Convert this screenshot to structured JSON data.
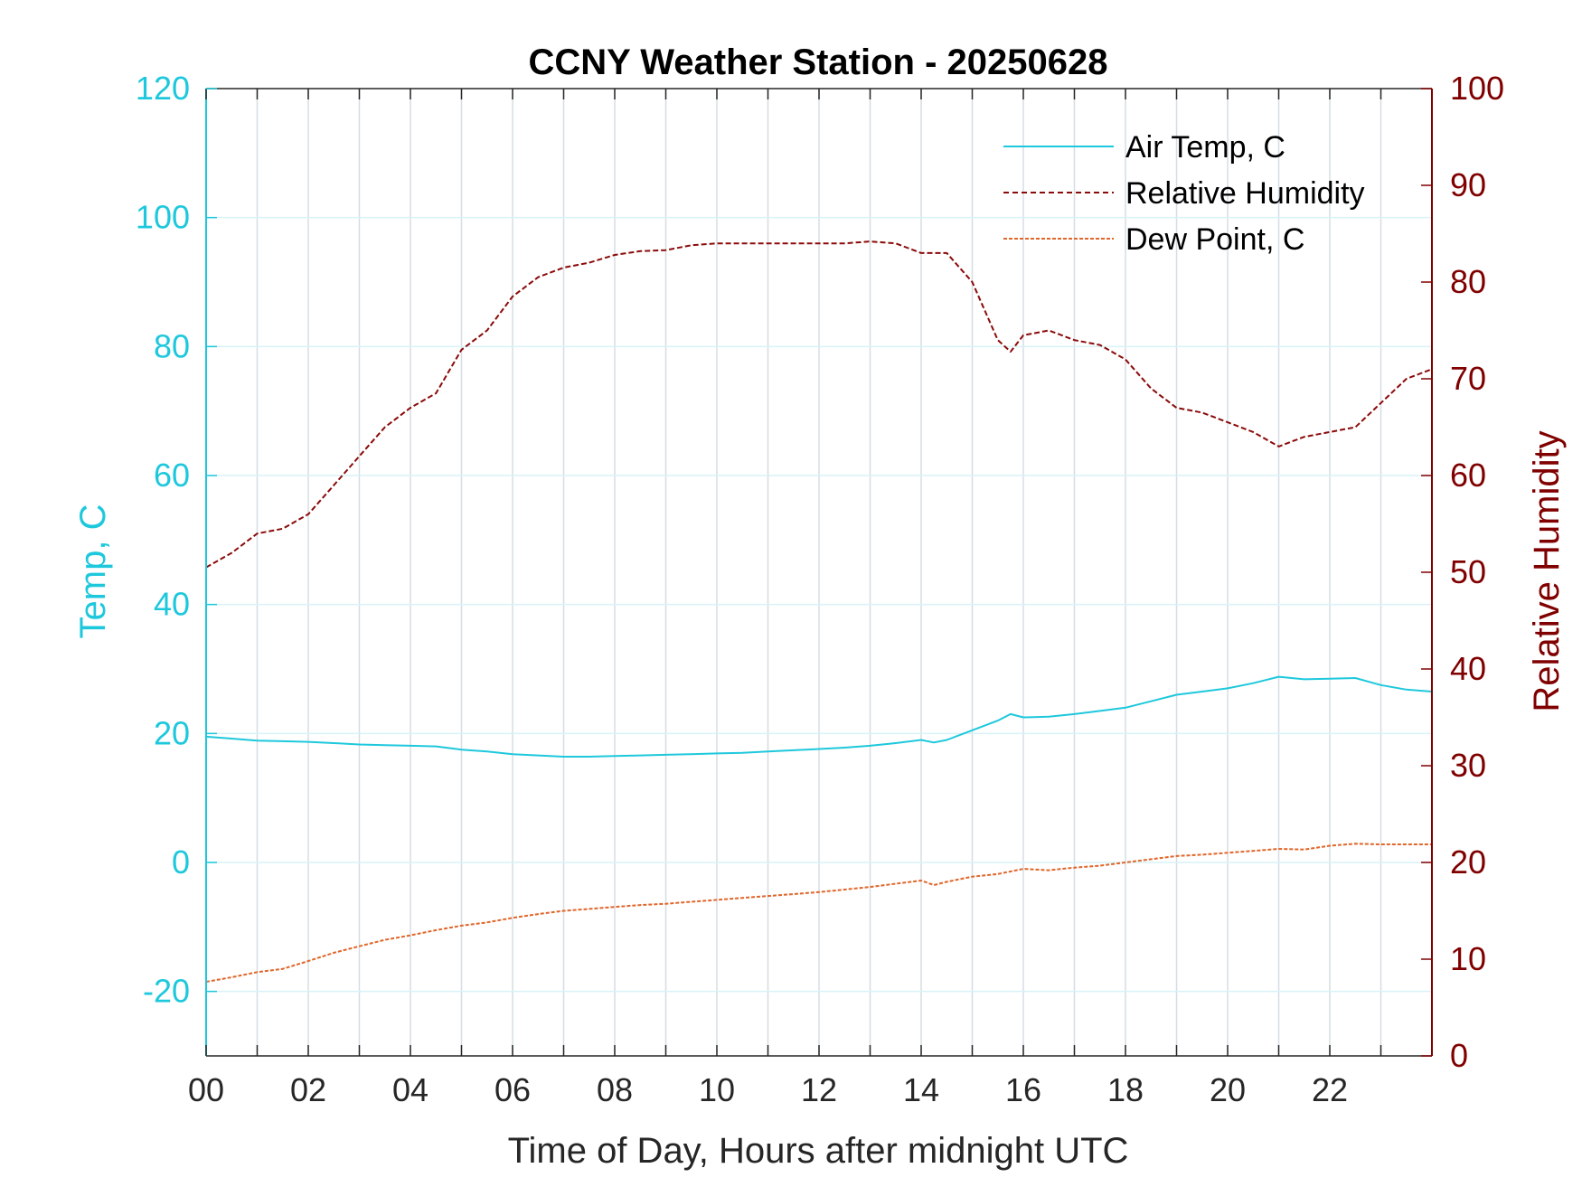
{
  "chart_data": {
    "type": "line",
    "title": "CCNY Weather Station - 20250628",
    "xlabel": "Time of Day, Hours after midnight UTC",
    "ylabel_left": "Temp, C",
    "ylabel_right": "Relative Humidity",
    "xlim": [
      0,
      24
    ],
    "ylim_left": [
      -30,
      120
    ],
    "ylim_right": [
      0,
      100
    ],
    "x_ticks": [
      "00",
      "02",
      "04",
      "06",
      "08",
      "10",
      "12",
      "14",
      "16",
      "18",
      "20",
      "22"
    ],
    "y_left_ticks": [
      "-20",
      "0",
      "20",
      "40",
      "60",
      "80",
      "100",
      "120"
    ],
    "y_right_ticks": [
      "0",
      "10",
      "20",
      "30",
      "40",
      "50",
      "60",
      "70",
      "80",
      "90",
      "100"
    ],
    "grid": true,
    "legend_position": "top-right",
    "colors": {
      "left_axis": "#1ec8dc",
      "right_axis": "#800000",
      "air_temp": "#1ec8dc",
      "humidity": "#8b0a0a",
      "dew_point": "#e0662a"
    },
    "series": [
      {
        "name": "Air Temp, C",
        "axis": "left",
        "x": [
          0,
          0.5,
          1,
          1.5,
          2,
          2.5,
          3,
          3.5,
          4,
          4.5,
          5,
          5.5,
          6,
          6.5,
          7,
          7.5,
          8,
          8.5,
          9,
          9.5,
          10,
          10.5,
          11,
          11.5,
          12,
          12.5,
          13,
          13.5,
          14,
          14.25,
          14.5,
          15,
          15.5,
          15.75,
          16,
          16.5,
          17,
          17.5,
          18,
          18.5,
          19,
          19.5,
          20,
          20.5,
          21,
          21.5,
          22,
          22.5,
          23,
          23.5,
          24
        ],
        "values": [
          19.5,
          19.2,
          18.9,
          18.8,
          18.7,
          18.5,
          18.3,
          18.2,
          18.1,
          18.0,
          17.5,
          17.2,
          16.8,
          16.6,
          16.4,
          16.4,
          16.5,
          16.6,
          16.7,
          16.8,
          16.9,
          17.0,
          17.2,
          17.4,
          17.6,
          17.8,
          18.1,
          18.5,
          19.0,
          18.6,
          19.0,
          20.5,
          22.0,
          23.0,
          22.5,
          22.6,
          23.0,
          23.5,
          24.0,
          25.0,
          26.0,
          26.5,
          27.0,
          27.8,
          28.8,
          28.4,
          28.5,
          28.6,
          27.5,
          26.8,
          26.5
        ]
      },
      {
        "name": "Relative Humidity",
        "axis": "right",
        "x": [
          0,
          0.5,
          1,
          1.5,
          2,
          2.5,
          3,
          3.5,
          4,
          4.5,
          5,
          5.5,
          6,
          6.5,
          7,
          7.5,
          8,
          8.5,
          9,
          9.5,
          10,
          10.5,
          11,
          11.5,
          12,
          12.5,
          13,
          13.5,
          14,
          14.5,
          15,
          15.5,
          15.75,
          16,
          16.5,
          17,
          17.5,
          18,
          18.5,
          19,
          19.5,
          20,
          20.5,
          21,
          21.25,
          21.5,
          22,
          22.5,
          23,
          23.5,
          24
        ],
        "values": [
          50.5,
          52,
          54,
          54.5,
          56,
          59,
          62,
          65,
          67,
          68.5,
          73,
          75,
          78.5,
          80.5,
          81.5,
          82,
          82.8,
          83.2,
          83.3,
          83.8,
          84,
          84,
          84,
          84,
          84,
          84,
          84.2,
          84,
          83,
          83,
          80,
          74,
          72.8,
          74.5,
          75,
          74,
          73.5,
          72,
          69,
          67,
          66.5,
          65.5,
          64.5,
          63,
          63.5,
          64,
          64.5,
          65,
          67.5,
          70,
          71
        ]
      },
      {
        "name": "Dew Point, C",
        "axis": "left",
        "x": [
          0,
          0.5,
          1,
          1.5,
          2,
          2.5,
          3,
          3.5,
          4,
          4.5,
          5,
          5.5,
          6,
          6.5,
          7,
          7.5,
          8,
          8.5,
          9,
          9.5,
          10,
          10.5,
          11,
          11.5,
          12,
          12.5,
          13,
          13.5,
          14,
          14.25,
          14.5,
          15,
          15.5,
          16,
          16.5,
          17,
          17.5,
          18,
          18.5,
          19,
          19.5,
          20,
          20.5,
          21,
          21.5,
          22,
          22.5,
          23,
          23.5,
          24
        ],
        "values": [
          -18.5,
          -17.8,
          -17,
          -16.5,
          -15.3,
          -14,
          -13,
          -12,
          -11.3,
          -10.5,
          -9.8,
          -9.3,
          -8.6,
          -8,
          -7.5,
          -7.2,
          -6.9,
          -6.6,
          -6.4,
          -6.1,
          -5.8,
          -5.5,
          -5.2,
          -4.9,
          -4.6,
          -4.2,
          -3.8,
          -3.3,
          -2.8,
          -3.5,
          -3.0,
          -2.2,
          -1.8,
          -1.0,
          -1.2,
          -0.8,
          -0.5,
          0.0,
          0.5,
          1.0,
          1.2,
          1.5,
          1.8,
          2.1,
          2.0,
          2.6,
          2.9,
          2.8,
          2.8,
          2.8
        ]
      }
    ]
  }
}
